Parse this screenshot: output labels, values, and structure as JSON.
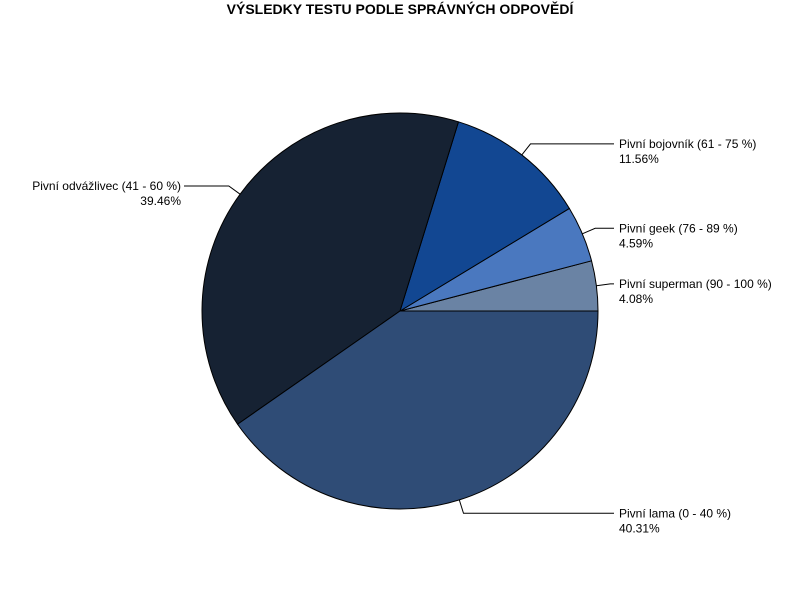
{
  "chart_data": {
    "type": "pie",
    "title": "VÝSLEDKY TESTU PODLE SPRÁVNÝCH ODPOVĚDÍ",
    "start_angle_deg": 0,
    "direction": "counterclockwise",
    "slices": [
      {
        "label": "Pivní superman (90 - 100 %)",
        "value": 4.08,
        "value_label": "4.08%",
        "color": "#6a83a4"
      },
      {
        "label": "Pivní geek (76 - 89 %)",
        "value": 4.59,
        "value_label": "4.59%",
        "color": "#4a78bf"
      },
      {
        "label": "Pivní bojovník (61 - 75 %)",
        "value": 11.56,
        "value_label": "11.56%",
        "color": "#124792"
      },
      {
        "label": "Pivní odvážlivec (41 - 60 %)",
        "value": 39.46,
        "value_label": "39.46%",
        "color": "#162233"
      },
      {
        "label": "Pivní lama (0 - 40 %)",
        "value": 40.31,
        "value_label": "40.31%",
        "color": "#2f4c76"
      }
    ]
  }
}
